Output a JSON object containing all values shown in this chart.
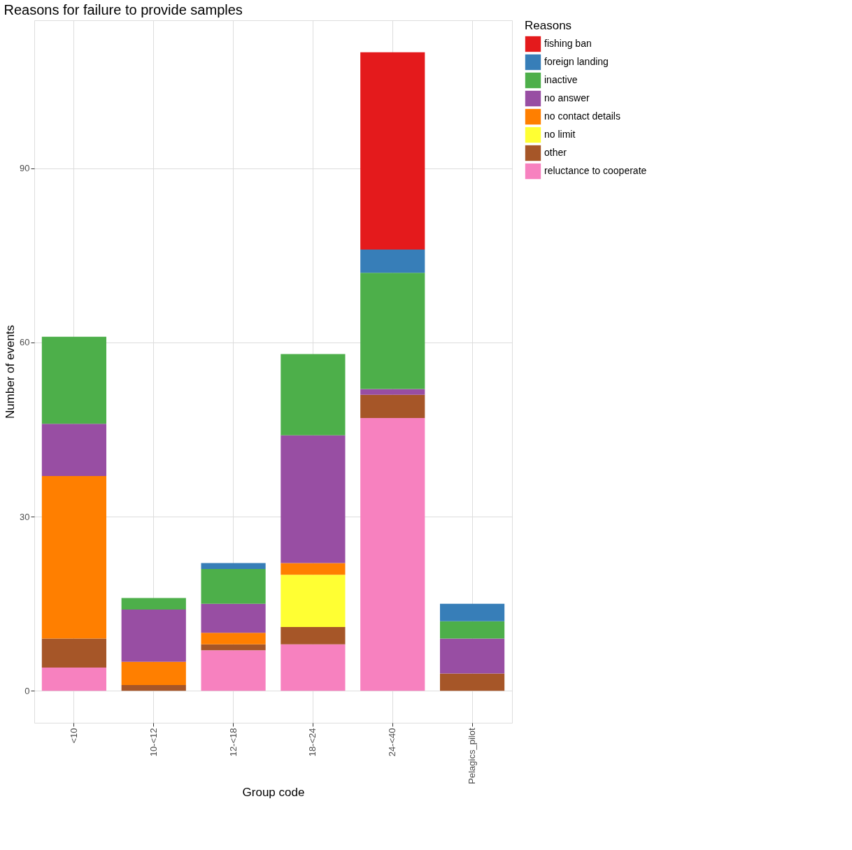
{
  "chart_data": {
    "type": "bar",
    "title": "Reasons for failure to provide samples",
    "xlabel": "Group code",
    "ylabel": "Number of events",
    "legend_title": "Reasons",
    "categories": [
      "<10",
      "10-<12",
      "12-<18",
      "18-<24",
      "24-<40",
      "Pelagics_pilot"
    ],
    "stacked": true,
    "ylim": [
      -5.5,
      115.5
    ],
    "yticks": [
      0,
      30,
      60,
      90
    ],
    "grid": true,
    "legend": "right",
    "series": [
      {
        "name": "reluctance to cooperate",
        "color": "#f781bf",
        "values": [
          4,
          null,
          7,
          8,
          47,
          null
        ]
      },
      {
        "name": "other",
        "color": "#a65628",
        "values": [
          5,
          1,
          1,
          3,
          4,
          3
        ]
      },
      {
        "name": "no limit",
        "color": "#ffff33",
        "values": [
          null,
          null,
          null,
          9,
          null,
          null
        ]
      },
      {
        "name": "no contact details",
        "color": "#ff7f00",
        "values": [
          28,
          4,
          2,
          2,
          null,
          null
        ]
      },
      {
        "name": "no answer",
        "color": "#984ea3",
        "values": [
          9,
          9,
          5,
          22,
          1,
          6
        ]
      },
      {
        "name": "inactive",
        "color": "#4daf4a",
        "values": [
          15,
          2,
          6,
          14,
          20,
          3
        ]
      },
      {
        "name": "foreign landing",
        "color": "#377eb8",
        "values": [
          null,
          null,
          1,
          null,
          4,
          3
        ]
      },
      {
        "name": "fishing ban",
        "color": "#e41a1c",
        "values": [
          null,
          null,
          null,
          null,
          34,
          null
        ]
      }
    ]
  }
}
